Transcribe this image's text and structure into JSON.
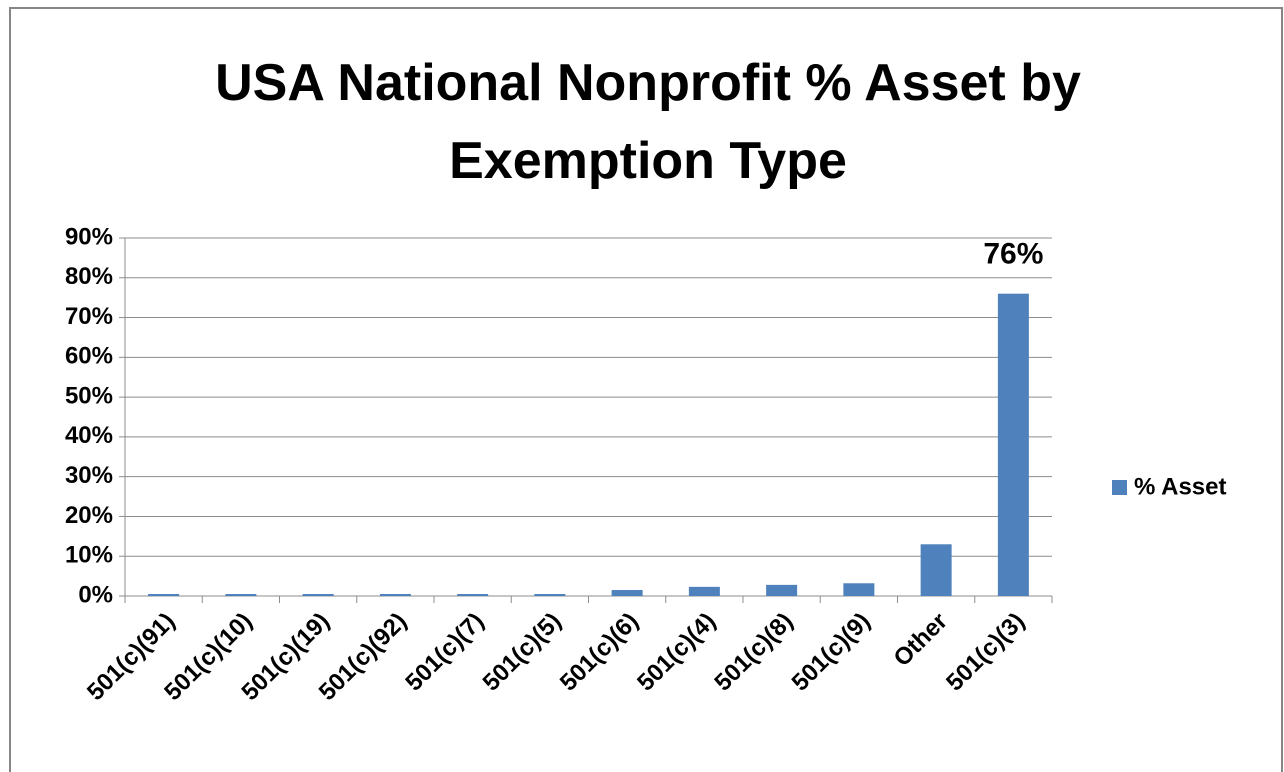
{
  "chart_data": {
    "type": "bar",
    "title": "USA National Nonprofit % Asset by Exemption Type",
    "categories": [
      "501(c)(91)",
      "501(c)(10)",
      "501(c)(19)",
      "501(c)(92)",
      "501(c)(7)",
      "501(c)(5)",
      "501(c)(6)",
      "501(c)(4)",
      "501(c)(8)",
      "501(c)(9)",
      "Other",
      "501(c)(3)"
    ],
    "series": [
      {
        "name": "% Asset",
        "color": "#4f81bd",
        "values": [
          0.5,
          0.5,
          0.5,
          0.5,
          0.5,
          0.5,
          1.5,
          2.3,
          2.8,
          3.2,
          13,
          76
        ],
        "value_labels": [
          null,
          null,
          null,
          null,
          null,
          null,
          null,
          null,
          null,
          null,
          null,
          "76%"
        ]
      }
    ],
    "ylim": [
      0,
      90
    ],
    "yticks": [
      {
        "value": 0,
        "label": "0%"
      },
      {
        "value": 10,
        "label": "10%"
      },
      {
        "value": 20,
        "label": "20%"
      },
      {
        "value": 30,
        "label": "30%"
      },
      {
        "value": 40,
        "label": "40%"
      },
      {
        "value": 50,
        "label": "50%"
      },
      {
        "value": 60,
        "label": "60%"
      },
      {
        "value": 70,
        "label": "70%"
      },
      {
        "value": 80,
        "label": "80%"
      },
      {
        "value": 90,
        "label": "90%"
      }
    ],
    "grid": true,
    "legend": "right"
  }
}
